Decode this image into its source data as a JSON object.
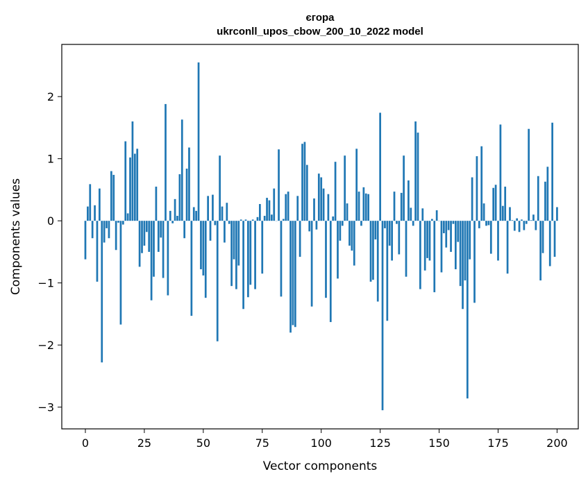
{
  "chart_data": {
    "type": "bar",
    "title": [
      "єгора",
      "ukrconll_upos_cbow_200_10_2022 model"
    ],
    "xlabel": "Vector components",
    "ylabel": "Components values",
    "xlim": [
      -10,
      209
    ],
    "ylim": [
      -3.35,
      2.84
    ],
    "xticks": [
      0,
      25,
      50,
      75,
      100,
      125,
      150,
      175,
      200
    ],
    "yticks": [
      -3,
      -2,
      -1,
      0,
      1,
      2
    ],
    "grid": false,
    "bar_color": "#1f77b4",
    "values": [
      -0.62,
      0.23,
      0.59,
      -0.28,
      0.25,
      -0.98,
      0.52,
      -2.28,
      -0.35,
      -0.12,
      -0.28,
      0.8,
      0.74,
      -0.47,
      -0.03,
      -1.67,
      -0.06,
      1.28,
      0.12,
      1.02,
      1.6,
      1.08,
      1.16,
      -0.74,
      -0.52,
      -0.4,
      -0.18,
      -0.5,
      -1.28,
      -0.9,
      0.55,
      -0.5,
      -0.27,
      -0.92,
      1.88,
      -1.2,
      0.16,
      -0.04,
      0.35,
      0.08,
      0.75,
      1.63,
      -0.28,
      0.84,
      1.18,
      -1.53,
      0.22,
      0.16,
      2.55,
      -0.78,
      -0.88,
      -1.24,
      0.4,
      -0.32,
      0.42,
      -0.07,
      -1.94,
      1.05,
      0.23,
      -0.35,
      0.29,
      -0.05,
      -1.05,
      -0.62,
      -1.1,
      -0.72,
      0.02,
      -1.42,
      0.02,
      -1.23,
      -1.03,
      0.02,
      -1.1,
      0.06,
      0.27,
      -0.85,
      0.08,
      0.37,
      0.33,
      0.1,
      0.52,
      0.0,
      1.15,
      -1.22,
      0.03,
      0.43,
      0.47,
      -1.8,
      -1.68,
      -1.71,
      0.4,
      -0.58,
      1.24,
      1.27,
      0.9,
      -0.17,
      -1.38,
      0.36,
      -0.14,
      0.76,
      0.7,
      0.52,
      -1.24,
      0.43,
      -1.63,
      0.07,
      0.95,
      -0.93,
      -0.32,
      -0.08,
      1.05,
      0.28,
      -0.4,
      -0.48,
      -0.72,
      1.16,
      0.47,
      -0.08,
      0.54,
      0.44,
      0.43,
      -0.98,
      -0.95,
      -0.3,
      -1.3,
      1.74,
      -3.05,
      -0.12,
      -1.61,
      -0.4,
      -0.64,
      0.47,
      -0.05,
      -0.54,
      0.45,
      1.05,
      -0.9,
      0.65,
      0.21,
      -0.08,
      1.6,
      1.42,
      -1.1,
      0.2,
      -0.8,
      -0.6,
      -0.64,
      0.03,
      -1.15,
      0.17,
      0.0,
      -0.83,
      -0.2,
      -0.43,
      -0.15,
      -0.5,
      -0.05,
      -0.78,
      -0.34,
      -1.05,
      -1.42,
      -0.96,
      -2.86,
      -0.62,
      0.7,
      -1.32,
      1.04,
      -0.12,
      1.2,
      0.28,
      -0.08,
      -0.07,
      -0.53,
      0.53,
      0.58,
      -0.64,
      1.55,
      0.24,
      0.55,
      -0.85,
      0.22,
      0.01,
      -0.16,
      0.04,
      -0.18,
      0.02,
      -0.15,
      -0.05,
      1.48,
      0.01,
      0.1,
      -0.15,
      0.72,
      -0.96,
      -0.52,
      0.63,
      0.87,
      -0.73,
      1.58,
      -0.58,
      0.22
    ]
  }
}
